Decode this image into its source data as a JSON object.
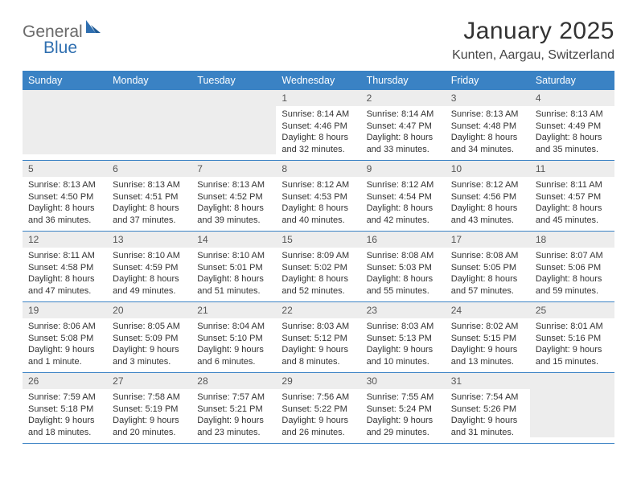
{
  "logo": {
    "part1": "General",
    "part2": "Blue"
  },
  "title": "January 2025",
  "subtitle": "Kunten, Aargau, Switzerland",
  "colors": {
    "header_bg": "#3a82c4",
    "header_fg": "#ffffff",
    "daynum_bg": "#ededed",
    "border": "#3a82c4",
    "text": "#333333",
    "logo_gray": "#6a6a6a",
    "logo_blue": "#2f6fb0"
  },
  "weekdays": [
    "Sunday",
    "Monday",
    "Tuesday",
    "Wednesday",
    "Thursday",
    "Friday",
    "Saturday"
  ],
  "weeks": [
    [
      null,
      null,
      null,
      {
        "n": "1",
        "sr": "8:14 AM",
        "ss": "4:46 PM",
        "dl": "8 hours and 32 minutes."
      },
      {
        "n": "2",
        "sr": "8:14 AM",
        "ss": "4:47 PM",
        "dl": "8 hours and 33 minutes."
      },
      {
        "n": "3",
        "sr": "8:13 AM",
        "ss": "4:48 PM",
        "dl": "8 hours and 34 minutes."
      },
      {
        "n": "4",
        "sr": "8:13 AM",
        "ss": "4:49 PM",
        "dl": "8 hours and 35 minutes."
      }
    ],
    [
      {
        "n": "5",
        "sr": "8:13 AM",
        "ss": "4:50 PM",
        "dl": "8 hours and 36 minutes."
      },
      {
        "n": "6",
        "sr": "8:13 AM",
        "ss": "4:51 PM",
        "dl": "8 hours and 37 minutes."
      },
      {
        "n": "7",
        "sr": "8:13 AM",
        "ss": "4:52 PM",
        "dl": "8 hours and 39 minutes."
      },
      {
        "n": "8",
        "sr": "8:12 AM",
        "ss": "4:53 PM",
        "dl": "8 hours and 40 minutes."
      },
      {
        "n": "9",
        "sr": "8:12 AM",
        "ss": "4:54 PM",
        "dl": "8 hours and 42 minutes."
      },
      {
        "n": "10",
        "sr": "8:12 AM",
        "ss": "4:56 PM",
        "dl": "8 hours and 43 minutes."
      },
      {
        "n": "11",
        "sr": "8:11 AM",
        "ss": "4:57 PM",
        "dl": "8 hours and 45 minutes."
      }
    ],
    [
      {
        "n": "12",
        "sr": "8:11 AM",
        "ss": "4:58 PM",
        "dl": "8 hours and 47 minutes."
      },
      {
        "n": "13",
        "sr": "8:10 AM",
        "ss": "4:59 PM",
        "dl": "8 hours and 49 minutes."
      },
      {
        "n": "14",
        "sr": "8:10 AM",
        "ss": "5:01 PM",
        "dl": "8 hours and 51 minutes."
      },
      {
        "n": "15",
        "sr": "8:09 AM",
        "ss": "5:02 PM",
        "dl": "8 hours and 52 minutes."
      },
      {
        "n": "16",
        "sr": "8:08 AM",
        "ss": "5:03 PM",
        "dl": "8 hours and 55 minutes."
      },
      {
        "n": "17",
        "sr": "8:08 AM",
        "ss": "5:05 PM",
        "dl": "8 hours and 57 minutes."
      },
      {
        "n": "18",
        "sr": "8:07 AM",
        "ss": "5:06 PM",
        "dl": "8 hours and 59 minutes."
      }
    ],
    [
      {
        "n": "19",
        "sr": "8:06 AM",
        "ss": "5:08 PM",
        "dl": "9 hours and 1 minute."
      },
      {
        "n": "20",
        "sr": "8:05 AM",
        "ss": "5:09 PM",
        "dl": "9 hours and 3 minutes."
      },
      {
        "n": "21",
        "sr": "8:04 AM",
        "ss": "5:10 PM",
        "dl": "9 hours and 6 minutes."
      },
      {
        "n": "22",
        "sr": "8:03 AM",
        "ss": "5:12 PM",
        "dl": "9 hours and 8 minutes."
      },
      {
        "n": "23",
        "sr": "8:03 AM",
        "ss": "5:13 PM",
        "dl": "9 hours and 10 minutes."
      },
      {
        "n": "24",
        "sr": "8:02 AM",
        "ss": "5:15 PM",
        "dl": "9 hours and 13 minutes."
      },
      {
        "n": "25",
        "sr": "8:01 AM",
        "ss": "5:16 PM",
        "dl": "9 hours and 15 minutes."
      }
    ],
    [
      {
        "n": "26",
        "sr": "7:59 AM",
        "ss": "5:18 PM",
        "dl": "9 hours and 18 minutes."
      },
      {
        "n": "27",
        "sr": "7:58 AM",
        "ss": "5:19 PM",
        "dl": "9 hours and 20 minutes."
      },
      {
        "n": "28",
        "sr": "7:57 AM",
        "ss": "5:21 PM",
        "dl": "9 hours and 23 minutes."
      },
      {
        "n": "29",
        "sr": "7:56 AM",
        "ss": "5:22 PM",
        "dl": "9 hours and 26 minutes."
      },
      {
        "n": "30",
        "sr": "7:55 AM",
        "ss": "5:24 PM",
        "dl": "9 hours and 29 minutes."
      },
      {
        "n": "31",
        "sr": "7:54 AM",
        "ss": "5:26 PM",
        "dl": "9 hours and 31 minutes."
      },
      null
    ]
  ],
  "labels": {
    "sunrise": "Sunrise:",
    "sunset": "Sunset:",
    "daylight": "Daylight:"
  }
}
